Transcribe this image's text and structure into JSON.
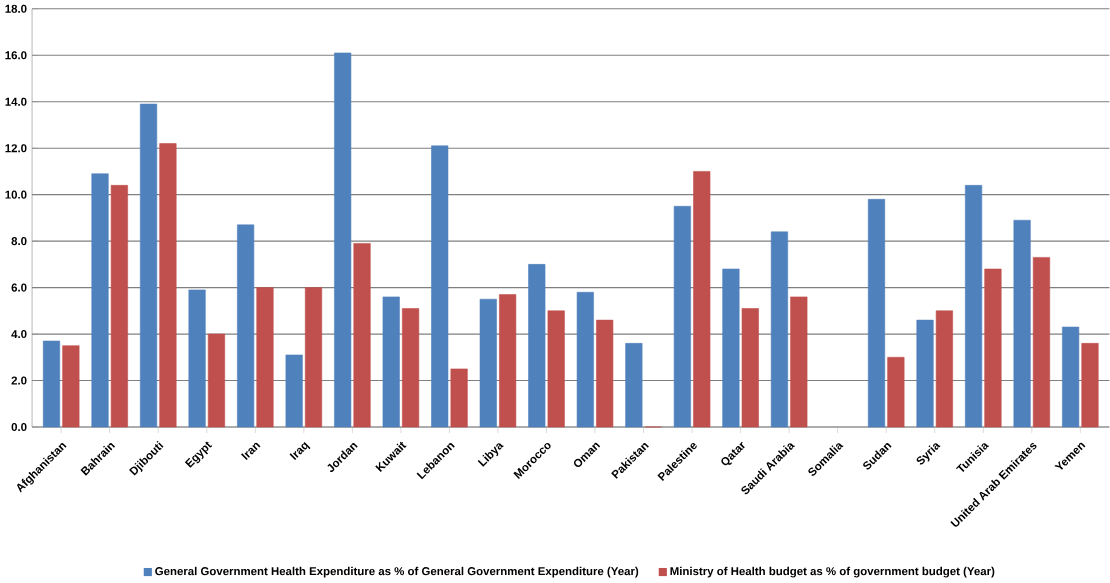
{
  "chart_data": {
    "type": "bar",
    "categories": [
      "Afghanistan",
      "Bahrain",
      "Djibouti",
      "Egypt",
      "Iran",
      "Iraq",
      "Jordan",
      "Kuwait",
      "Lebanon",
      "Libya",
      "Morocco",
      "Oman",
      "Pakistan",
      "Palestine",
      "Qatar",
      "Saudi Arabia",
      "Somalia",
      "Sudan",
      "Syria",
      "Tunisia",
      "United Arab Emirates",
      "Yemen"
    ],
    "series": [
      {
        "name": "General Government Health Expenditure as % of General Government Expenditure (Year)",
        "color": "#4f81bd",
        "values": [
          3.7,
          10.9,
          13.9,
          5.9,
          8.7,
          3.1,
          16.1,
          5.6,
          12.1,
          5.5,
          7.0,
          5.8,
          3.6,
          9.5,
          6.8,
          8.4,
          null,
          9.8,
          4.6,
          10.4,
          8.9,
          4.3
        ]
      },
      {
        "name": "Ministry of Health budget as % of government budget (Year)",
        "color": "#c0504d",
        "values": [
          3.5,
          10.4,
          12.2,
          4.0,
          6.0,
          6.0,
          7.9,
          5.1,
          2.5,
          5.7,
          5.0,
          4.6,
          0.0,
          11.0,
          5.1,
          5.6,
          null,
          3.0,
          5.0,
          6.8,
          7.3,
          3.6
        ]
      }
    ],
    "ylim": [
      0,
      18
    ],
    "yticks": [
      {
        "value": 0,
        "label": "0.0"
      },
      {
        "value": 2,
        "label": "2.0"
      },
      {
        "value": 4,
        "label": "4.0"
      },
      {
        "value": 6,
        "label": "6.0"
      },
      {
        "value": 8,
        "label": "8.0"
      },
      {
        "value": 10,
        "label": "10.0"
      },
      {
        "value": 12,
        "label": "12.0"
      },
      {
        "value": 14,
        "label": "14.0"
      },
      {
        "value": 16,
        "label": "16.0"
      },
      {
        "value": 18,
        "label": "18.0"
      }
    ],
    "grid": "y",
    "legend": "bottom"
  }
}
